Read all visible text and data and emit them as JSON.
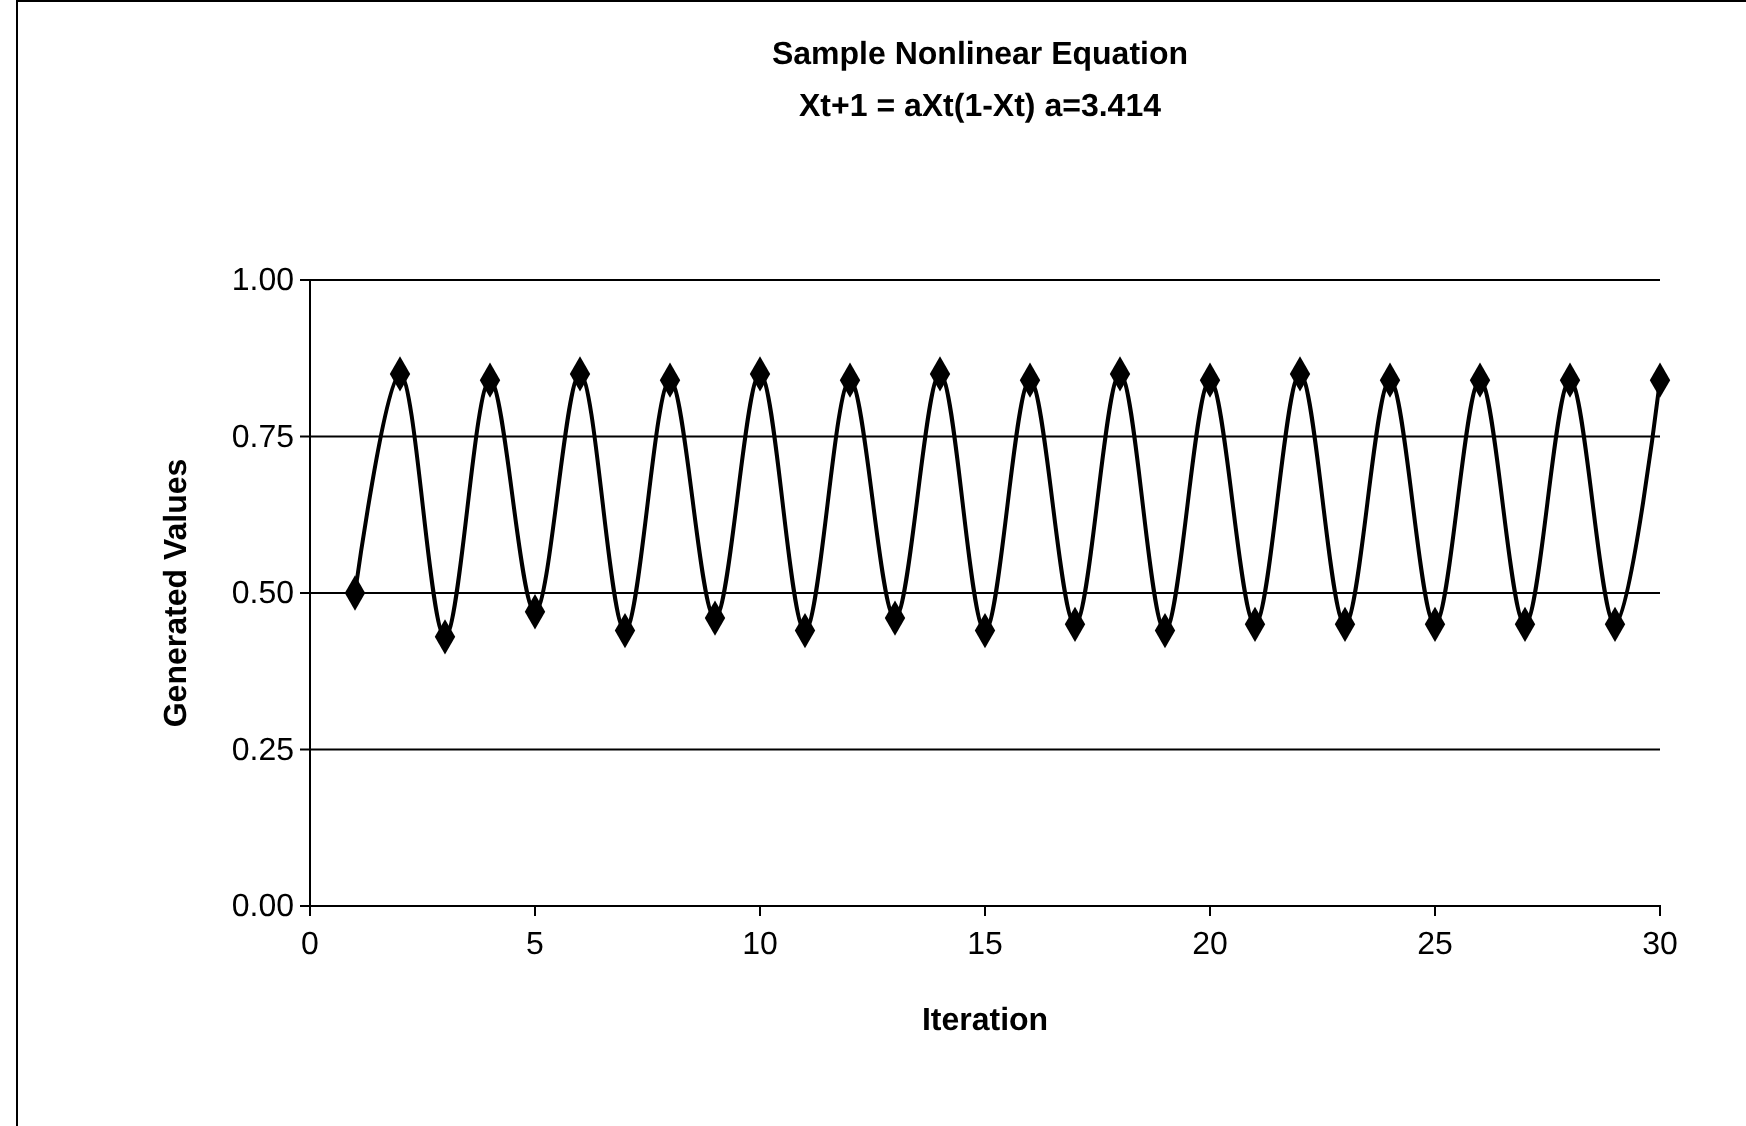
{
  "chart_data": {
    "type": "line",
    "title": "Sample Nonlinear Equation",
    "subtitle": "Xt+1 = aXt(1-Xt)  a=3.414",
    "xlabel": "Iteration",
    "ylabel": "Generated Values",
    "x": [
      1,
      2,
      3,
      4,
      5,
      6,
      7,
      8,
      9,
      10,
      11,
      12,
      13,
      14,
      15,
      16,
      17,
      18,
      19,
      20,
      21,
      22,
      23,
      24,
      25,
      26,
      27,
      28,
      29,
      30
    ],
    "series": [
      {
        "color": "#000000",
        "values": [
          0.5,
          0.85,
          0.43,
          0.84,
          0.47,
          0.85,
          0.44,
          0.84,
          0.46,
          0.85,
          0.44,
          0.84,
          0.46,
          0.85,
          0.44,
          0.84,
          0.45,
          0.85,
          0.44,
          0.84,
          0.45,
          0.85,
          0.45,
          0.84,
          0.45,
          0.84,
          0.45,
          0.84,
          0.45,
          0.84
        ]
      }
    ],
    "xlim": [
      0,
      30
    ],
    "xticks": [
      0,
      5,
      10,
      15,
      20,
      25,
      30
    ],
    "ylim": [
      0,
      1
    ],
    "yticks": [
      {
        "value": 0,
        "label": "0.00"
      },
      {
        "value": 0.25,
        "label": "0.25"
      },
      {
        "value": 0.5,
        "label": "0.50"
      },
      {
        "value": 0.75,
        "label": "0.75"
      },
      {
        "value": 1,
        "label": "1.00"
      }
    ],
    "grid": "y",
    "marker": "diamond",
    "line_style": "solid"
  }
}
